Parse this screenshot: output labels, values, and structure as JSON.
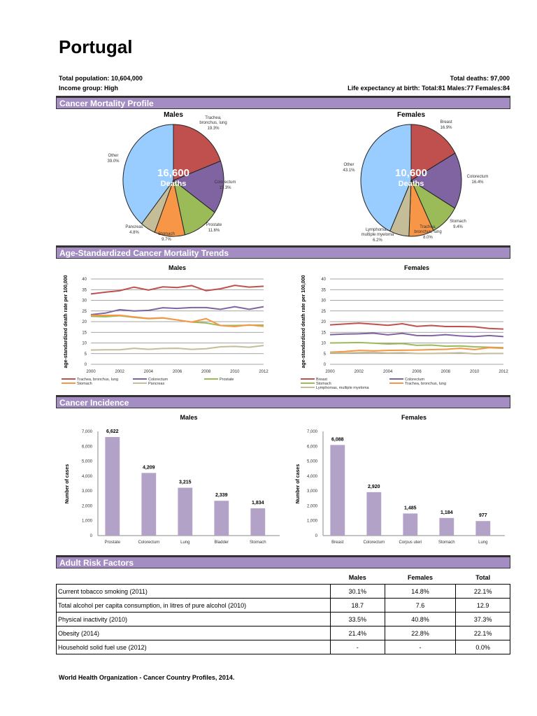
{
  "title": "Portugal",
  "info": {
    "population": "Total population: 10,604,000",
    "income": "Income group:  High",
    "deaths": "Total deaths: 97,000",
    "life": "Life expectancy at birth:   Total:81   Males:77   Females:84"
  },
  "sections": {
    "mortality": "Cancer Mortality Profile",
    "trends": "Age-Standardized Cancer Mortality Trends",
    "incidence": "Cancer Incidence",
    "risk": "Adult Risk Factors"
  },
  "colors": {
    "lung": "#c0504d",
    "colorectum": "#8064a2",
    "prostate": "#9bbb59",
    "stomach": "#f79646",
    "pancreas": "#c4bd97",
    "other": "#99ccff",
    "bar": "#b3a2c7",
    "header": "#a38dc2"
  },
  "chart_data": [
    {
      "type": "pie",
      "title": "Males",
      "center_value": "16,600",
      "center_label": "Deaths",
      "slices": [
        {
          "label": "Trachea, bronchus, lung",
          "value": 19.3,
          "text": "19.3%",
          "color": "#c0504d"
        },
        {
          "label": "Colorectum",
          "value": 15.3,
          "text": "15.3%",
          "color": "#8064a2"
        },
        {
          "label": "Prostate",
          "value": 11.6,
          "text": "11.6%",
          "color": "#9bbb59"
        },
        {
          "label": "Stomach",
          "value": 9.7,
          "text": "9.7%",
          "color": "#f79646"
        },
        {
          "label": "Pancreas",
          "value": 4.8,
          "text": "4.8%",
          "color": "#c4bd97"
        },
        {
          "label": "Other",
          "value": 39.0,
          "text": "39.0%",
          "color": "#99ccff"
        }
      ]
    },
    {
      "type": "pie",
      "title": "Females",
      "center_value": "10,600",
      "center_label": "Deaths",
      "slices": [
        {
          "label": "Breast",
          "value": 16.9,
          "text": "16.9%",
          "color": "#c0504d"
        },
        {
          "label": "Colorectum",
          "value": 16.4,
          "text": "16.4%",
          "color": "#8064a2"
        },
        {
          "label": "Stomach",
          "value": 9.4,
          "text": "9.4%",
          "color": "#9bbb59"
        },
        {
          "label": "Trachea, bronchus, lung",
          "value": 8.0,
          "text": "8.0%",
          "color": "#f79646"
        },
        {
          "label": "Lymphomas, multiple myeloma",
          "value": 6.2,
          "text": "6.2%",
          "color": "#c4bd97"
        },
        {
          "label": "Other",
          "value": 43.1,
          "text": "43.1%",
          "color": "#99ccff"
        }
      ]
    },
    {
      "type": "line",
      "title": "Males",
      "ylabel": "age-standardized death rate per 100,000",
      "ylim": [
        0,
        40
      ],
      "yticks": [
        0,
        5,
        10,
        15,
        20,
        25,
        30,
        35,
        40
      ],
      "xticks": [
        2000,
        2002,
        2004,
        2006,
        2008,
        2010,
        2012
      ],
      "grid": true,
      "legend": "bottom",
      "x": [
        2000,
        2001,
        2002,
        2003,
        2004,
        2005,
        2006,
        2007,
        2008,
        2009,
        2010,
        2011,
        2012
      ],
      "series": [
        {
          "name": "Trachea, bronchus, lung",
          "color": "#c0504d",
          "values": [
            33,
            33.8,
            34.5,
            36.2,
            34.8,
            36.3,
            36,
            36.9,
            34.5,
            35.4,
            37,
            36.2,
            36.6
          ]
        },
        {
          "name": "Colorectum",
          "color": "#8064a2",
          "values": [
            23.3,
            24,
            25.6,
            25,
            25.3,
            26.5,
            26.2,
            26.6,
            26.6,
            25.8,
            27,
            25.8,
            27
          ]
        },
        {
          "name": "Prostate",
          "color": "#9bbb59",
          "values": [
            22.5,
            22.3,
            22.8,
            22,
            21.4,
            21.7,
            20.8,
            19.8,
            19.4,
            18.2,
            18.2,
            18.3,
            18.4
          ]
        },
        {
          "name": "Stomach",
          "color": "#f79646",
          "values": [
            23,
            22.9,
            23,
            22.2,
            21.5,
            21.8,
            20.8,
            19.8,
            21.4,
            18.2,
            17.7,
            18.5,
            17.8
          ]
        },
        {
          "name": "Pancreas",
          "color": "#c4bd97",
          "values": [
            6.7,
            6.8,
            6.8,
            7.5,
            7,
            7.4,
            7.5,
            7,
            7.3,
            8.2,
            8.4,
            8,
            8.8
          ]
        }
      ]
    },
    {
      "type": "line",
      "title": "Females",
      "ylabel": "age-standardized death rate per 100,000",
      "ylim": [
        0,
        40
      ],
      "yticks": [
        0,
        5,
        10,
        15,
        20,
        25,
        30,
        35,
        40
      ],
      "xticks": [
        2000,
        2002,
        2004,
        2006,
        2008,
        2010,
        2012
      ],
      "grid": true,
      "legend": "bottom",
      "x": [
        2000,
        2001,
        2002,
        2003,
        2004,
        2005,
        2006,
        2007,
        2008,
        2009,
        2010,
        2011,
        2012
      ],
      "series": [
        {
          "name": "Breast",
          "color": "#c0504d",
          "values": [
            18.5,
            18.9,
            19.3,
            18.8,
            18.3,
            19,
            17.8,
            18.2,
            17.7,
            17.7,
            17.6,
            16.8,
            16.5
          ]
        },
        {
          "name": "Colorectum",
          "color": "#8064a2",
          "values": [
            13.9,
            14.2,
            14.3,
            14.6,
            13.8,
            14.5,
            13.5,
            13.4,
            13.9,
            13.3,
            13,
            13.5,
            13
          ]
        },
        {
          "name": "Stomach",
          "color": "#9bbb59",
          "values": [
            10,
            10.1,
            10.2,
            9.9,
            9.5,
            9.7,
            8.9,
            9,
            8.5,
            8.6,
            8.2,
            8,
            7.8
          ]
        },
        {
          "name": "Trachea, bronchus, lung",
          "color": "#f79646",
          "values": [
            5.7,
            6,
            6.5,
            6.3,
            6.5,
            6.6,
            6.7,
            6.9,
            7,
            7.5,
            6.9,
            7.8,
            7.5
          ]
        },
        {
          "name": "Lymphomas, multiple myeloma",
          "color": "#c4bd97",
          "values": [
            5.4,
            5.3,
            5.5,
            5.6,
            5.3,
            5.4,
            5.1,
            5.1,
            5.2,
            5.4,
            4.9,
            5.1,
            5.1
          ]
        }
      ]
    },
    {
      "type": "bar",
      "title": "Males",
      "ylabel": "Number of cases",
      "ylim": [
        0,
        7000
      ],
      "yticks": [
        "0",
        "1,000",
        "2,000",
        "3,000",
        "4,000",
        "5,000",
        "6,000",
        "7,000"
      ],
      "categories": [
        "Prostate",
        "Colorectum",
        "Lung",
        "Bladder",
        "Stomach"
      ],
      "values": [
        6622,
        4209,
        3215,
        2339,
        1834
      ],
      "labels": [
        "6,622",
        "4,209",
        "3,215",
        "2,339",
        "1,834"
      ]
    },
    {
      "type": "bar",
      "title": "Females",
      "ylabel": "Number of cases",
      "ylim": [
        0,
        7000
      ],
      "yticks": [
        "0",
        "1,000",
        "2,000",
        "3,000",
        "4,000",
        "5,000",
        "6,000",
        "7,000"
      ],
      "categories": [
        "Breast",
        "Colorectum",
        "Corpus uteri",
        "Stomach",
        "Lung"
      ],
      "values": [
        6088,
        2920,
        1485,
        1184,
        977
      ],
      "labels": [
        "6,088",
        "2,920",
        "1,485",
        "1,184",
        "977"
      ]
    }
  ],
  "risk_table": {
    "headers": [
      "Males",
      "Females",
      "Total"
    ],
    "rows": [
      {
        "label": "Current tobacco smoking (2011)",
        "values": [
          "30.1%",
          "14.8%",
          "22.1%"
        ]
      },
      {
        "label": "Total alcohol per capita consumption, in litres of pure alcohol (2010)",
        "values": [
          "18.7",
          "7.6",
          "12.9"
        ]
      },
      {
        "label": "Physical inactivity (2010)",
        "values": [
          "33.5%",
          "40.8%",
          "37.3%"
        ]
      },
      {
        "label": "Obesity (2014)",
        "values": [
          "21.4%",
          "22.8%",
          "22.1%"
        ]
      },
      {
        "label": "Household solid fuel use (2012)",
        "values": [
          "-",
          "-",
          "0.0%"
        ]
      }
    ]
  },
  "footer": "World Health Organization - Cancer Country Profiles, 2014."
}
